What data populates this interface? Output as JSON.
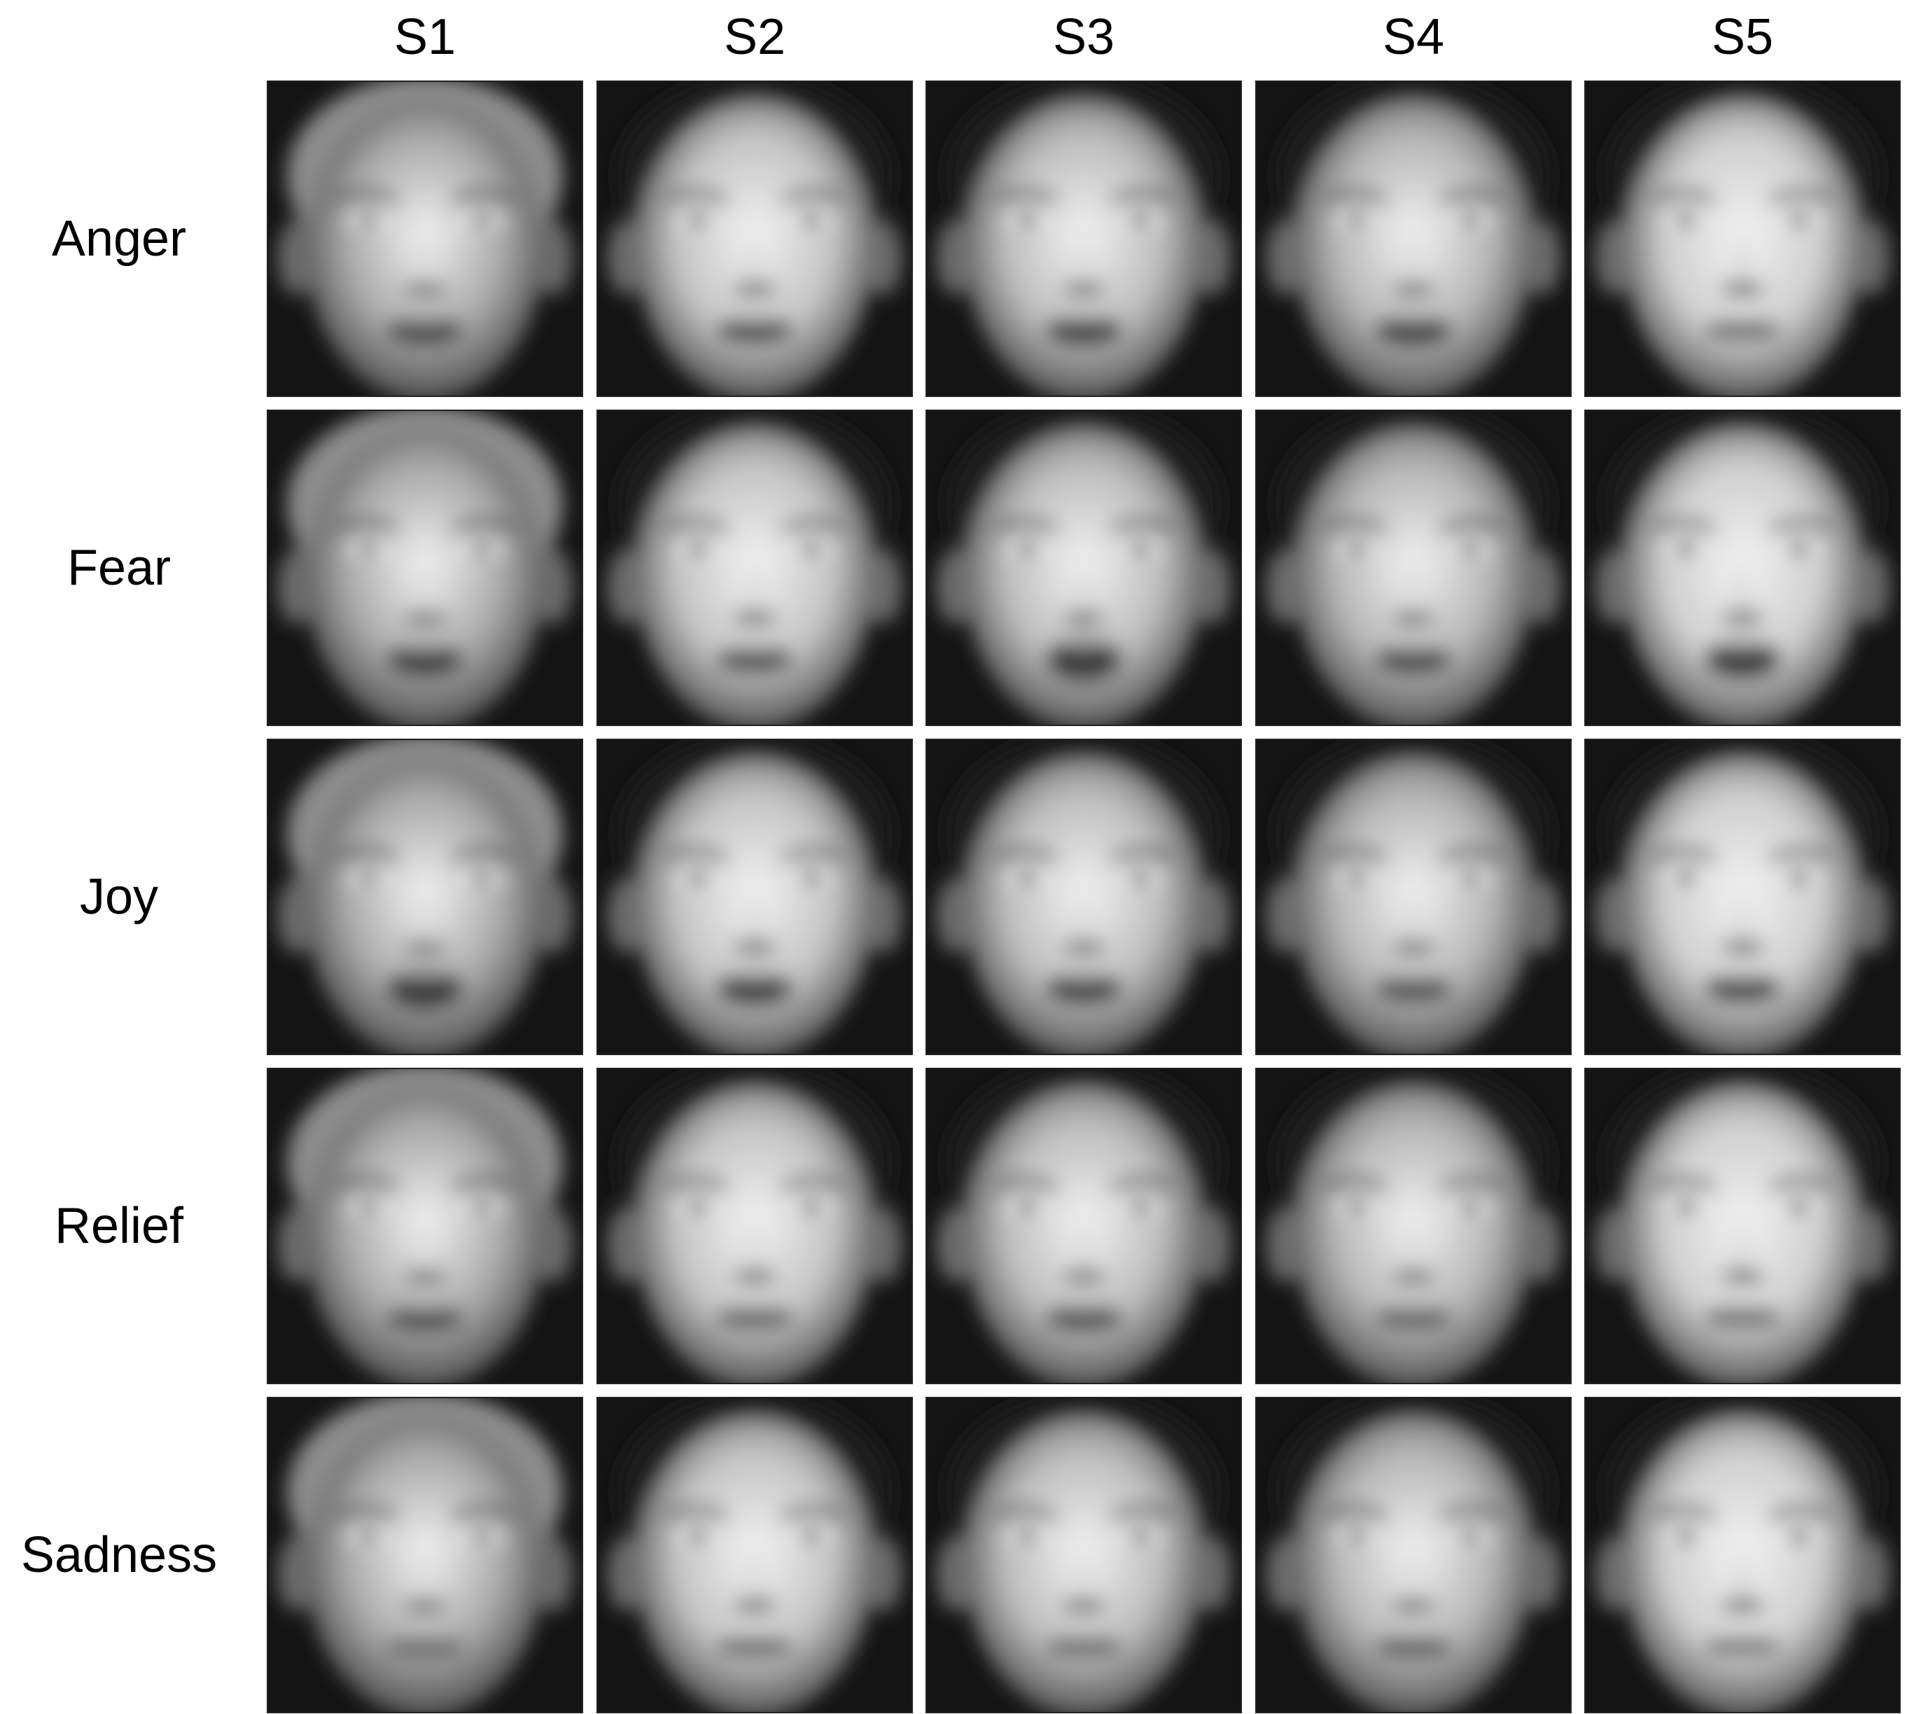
{
  "columns": [
    "S1",
    "S2",
    "S3",
    "S4",
    "S5"
  ],
  "rows": [
    "Anger",
    "Fear",
    "Joy",
    "Relief",
    "Sadness"
  ],
  "image_description_tokens": {
    "subjects": [
      {
        "id": "S1",
        "hair": "light",
        "tone": "#a9a9a9"
      },
      {
        "id": "S2",
        "hair": "dark",
        "tone": "#c4c4c4"
      },
      {
        "id": "S3",
        "hair": "dark",
        "tone": "#bdbdbd"
      },
      {
        "id": "S4",
        "hair": "dark",
        "tone": "#b6b6b6"
      },
      {
        "id": "S5",
        "hair": "dark",
        "tone": "#cfcfcf"
      }
    ],
    "mouth_open": [
      [
        0.35,
        0.3,
        0.4,
        0.4,
        0.15
      ],
      [
        0.45,
        0.3,
        0.65,
        0.35,
        0.55
      ],
      [
        0.6,
        0.45,
        0.4,
        0.3,
        0.35
      ],
      [
        0.3,
        0.2,
        0.3,
        0.2,
        0.15
      ],
      [
        0.15,
        0.15,
        0.15,
        0.2,
        0.1
      ]
    ]
  }
}
